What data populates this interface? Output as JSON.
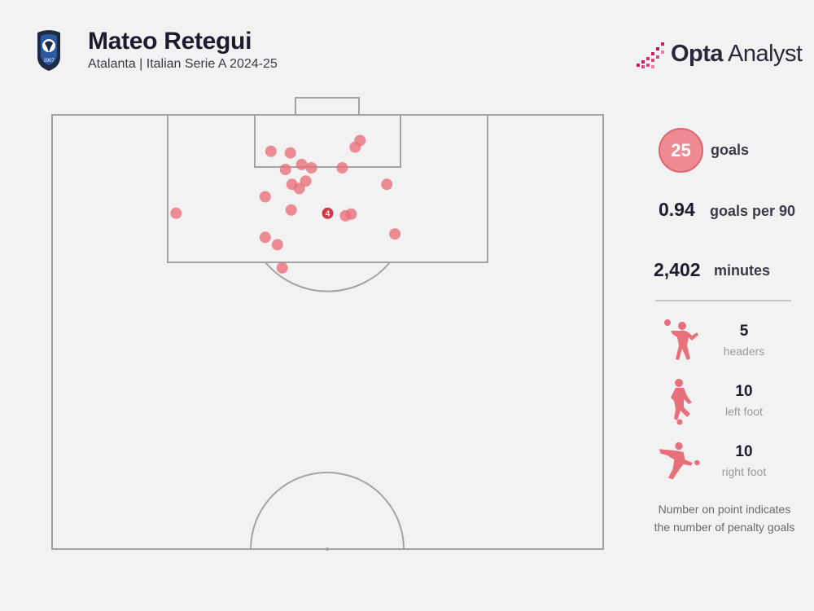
{
  "header": {
    "player_name": "Mateo Retegui",
    "subtitle": "Atalanta | Italian Serie A 2024-25",
    "brand_bold": "Opta",
    "brand_light": " Analyst",
    "crest_icon": "atalanta-crest-icon",
    "crest_text": "1907"
  },
  "stats": {
    "goals_value": "25",
    "goals_label": "goals",
    "gp90_value": "0.94",
    "gp90_label": "goals per 90",
    "minutes_value": "2,402",
    "minutes_label": "minutes",
    "breakdown": [
      {
        "icon": "header-player-icon",
        "count": "5",
        "label": "headers"
      },
      {
        "icon": "left-foot-player-icon",
        "count": "10",
        "label": "left foot"
      },
      {
        "icon": "right-foot-player-icon",
        "count": "10",
        "label": "right foot"
      }
    ],
    "note_line1": "Number on point indicates",
    "note_line2": "the number of penalty goals"
  },
  "colors": {
    "point": "#e8707a",
    "penalty_point": "#cf3a46",
    "badge": "#ee8a92",
    "pitch_line": "#a3a3a3",
    "background": "#f2f2f2"
  },
  "chart_data": {
    "type": "scatter",
    "description_units": "pitch metres: x = across pitch width from left touchline (0-68), y = distance from goal line (0-52.5, half pitch)",
    "xlim": [
      0,
      68
    ],
    "ylim": [
      0,
      52.5
    ],
    "points": [
      {
        "x": 27.0,
        "y": 4.4
      },
      {
        "x": 29.4,
        "y": 4.6
      },
      {
        "x": 37.4,
        "y": 3.9
      },
      {
        "x": 38.0,
        "y": 3.1
      },
      {
        "x": 30.8,
        "y": 6.0
      },
      {
        "x": 28.8,
        "y": 6.6
      },
      {
        "x": 32.0,
        "y": 6.4
      },
      {
        "x": 35.8,
        "y": 6.4
      },
      {
        "x": 31.3,
        "y": 8.0
      },
      {
        "x": 29.6,
        "y": 8.4
      },
      {
        "x": 30.5,
        "y": 8.9
      },
      {
        "x": 41.3,
        "y": 8.4
      },
      {
        "x": 26.3,
        "y": 9.9
      },
      {
        "x": 15.3,
        "y": 11.9
      },
      {
        "x": 29.5,
        "y": 11.5
      },
      {
        "x": 34.0,
        "y": 11.9,
        "penalties": 4
      },
      {
        "x": 36.2,
        "y": 12.2
      },
      {
        "x": 36.9,
        "y": 12.0
      },
      {
        "x": 42.3,
        "y": 14.4
      },
      {
        "x": 26.3,
        "y": 14.8
      },
      {
        "x": 27.8,
        "y": 15.7
      },
      {
        "x": 28.4,
        "y": 18.5
      }
    ]
  }
}
